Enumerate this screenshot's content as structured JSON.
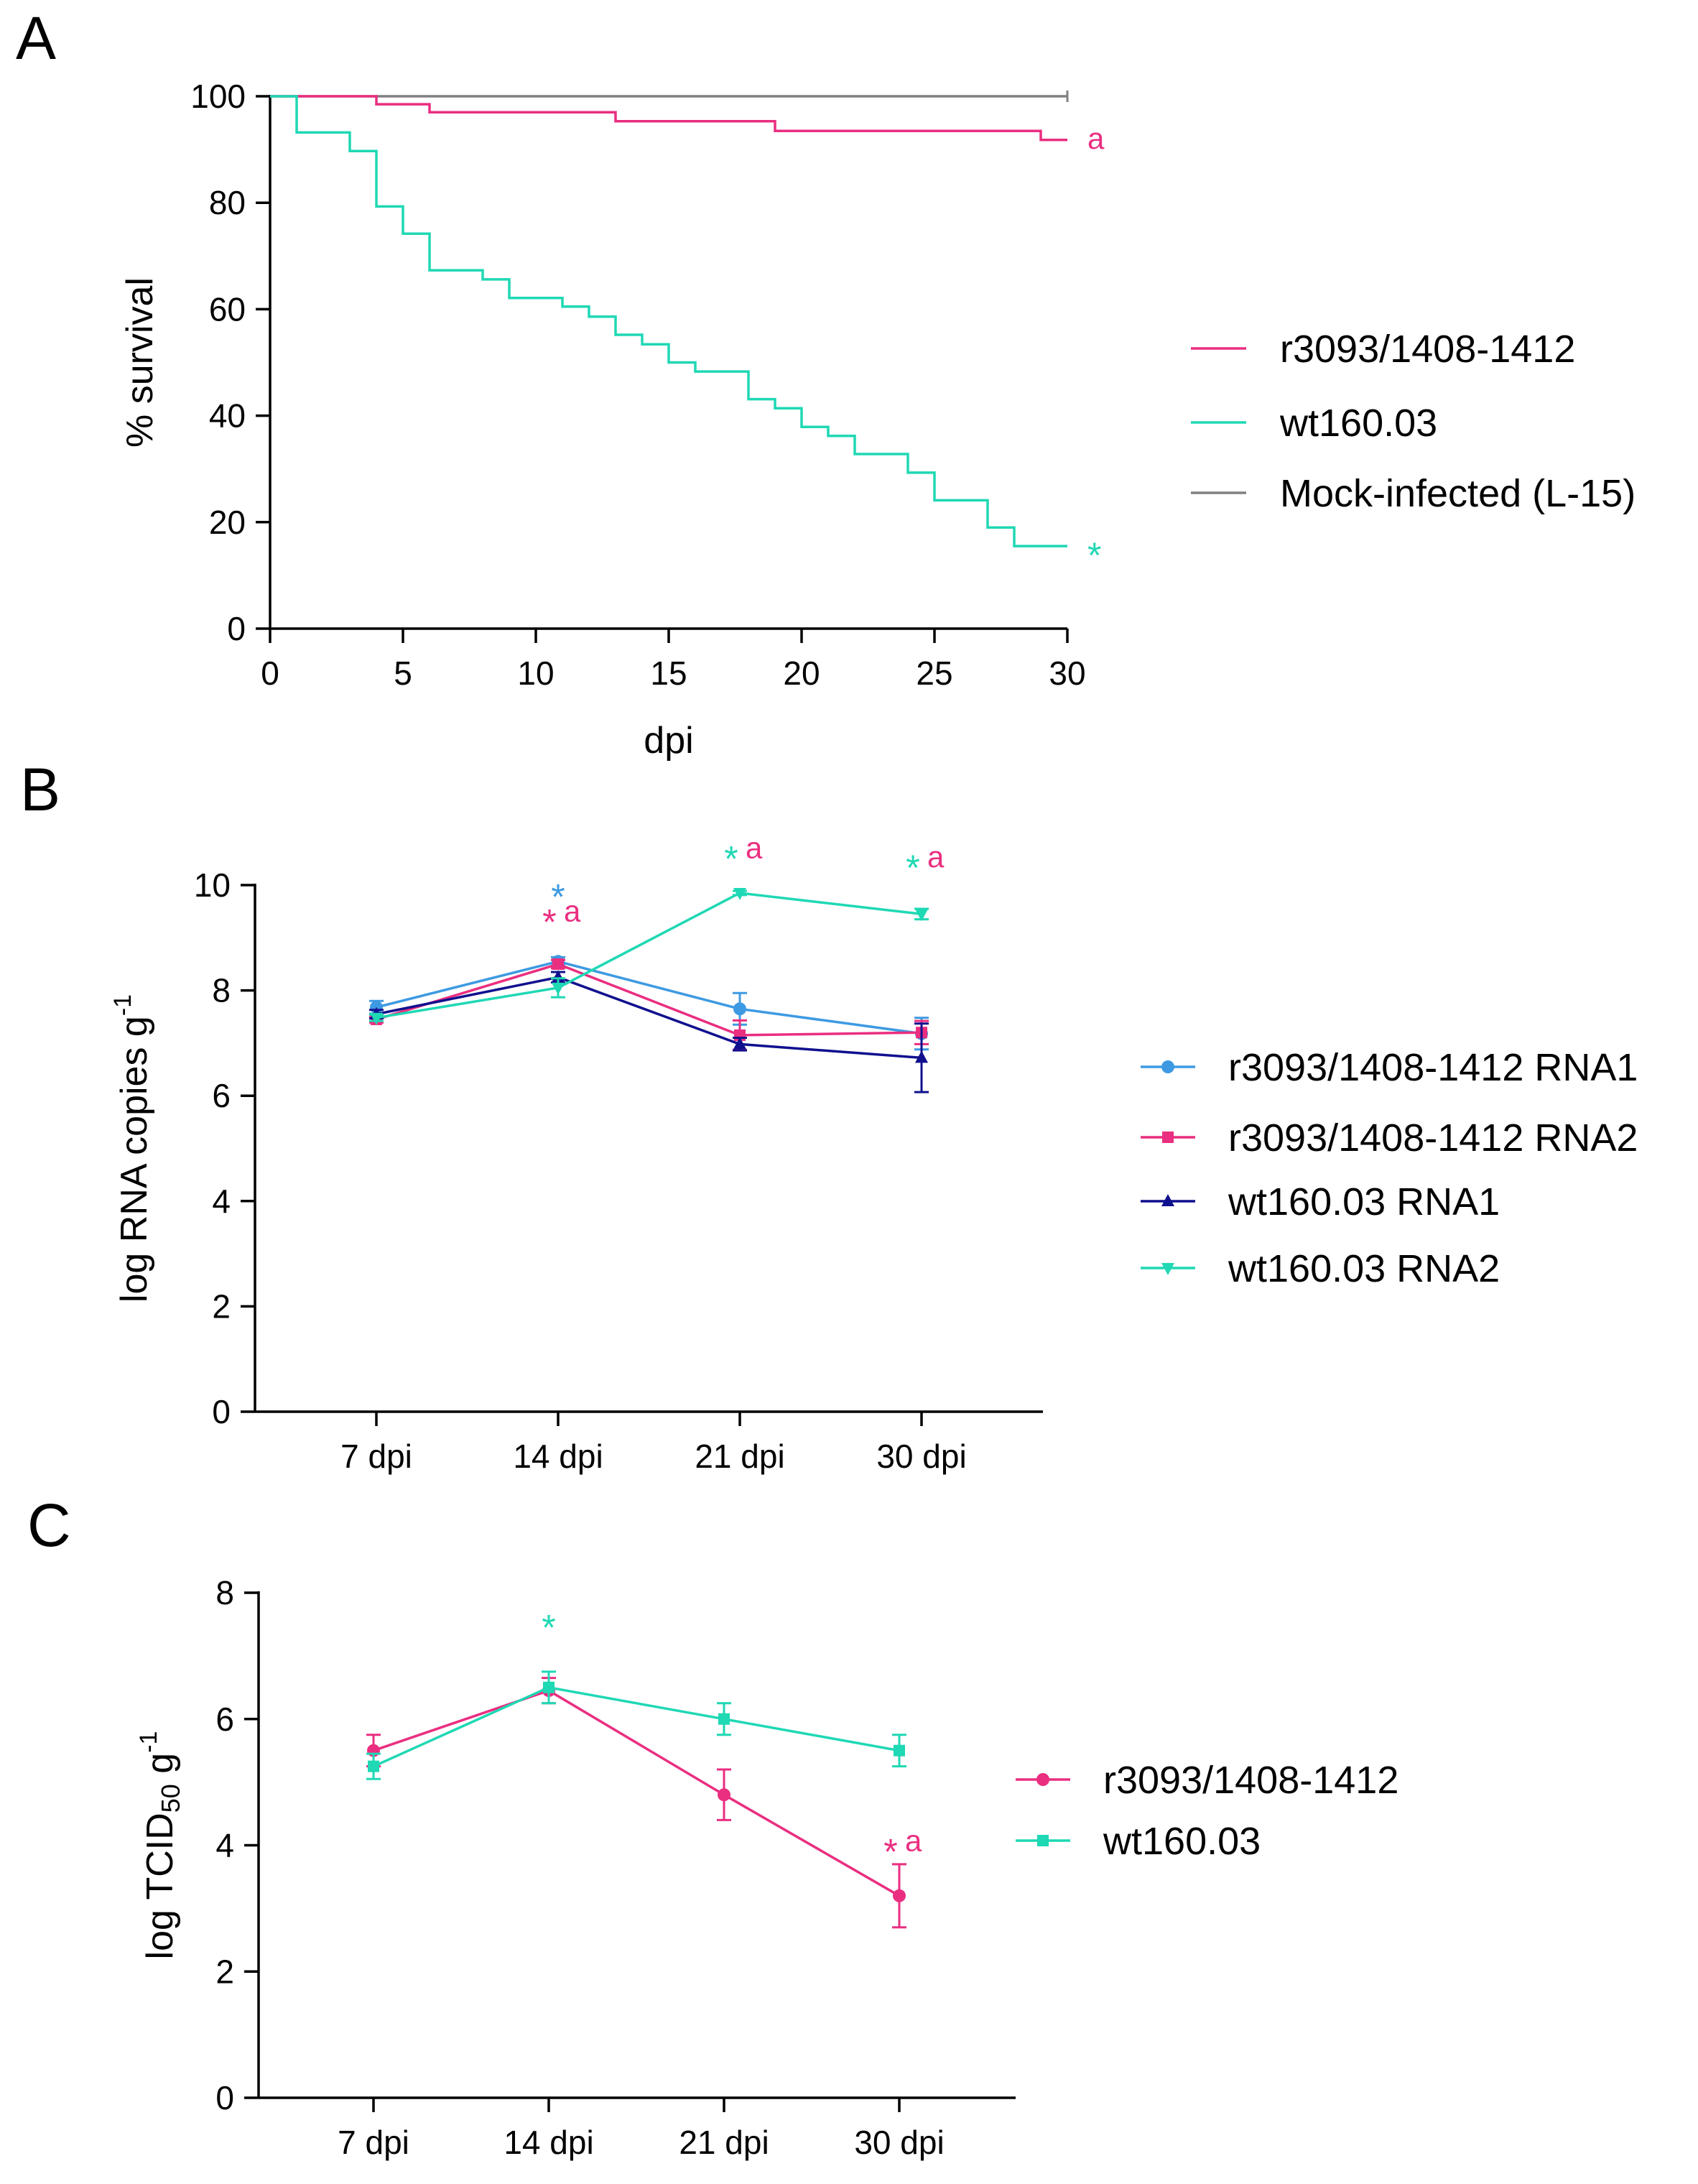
{
  "colors": {
    "pink": "#ea2e80",
    "teal": "#1fd8b4",
    "gray": "#808080",
    "lightblue": "#3d9ae2",
    "navy": "#10108f",
    "axis": "#000000"
  },
  "panels": {
    "A": {
      "letter": "A"
    },
    "B": {
      "letter": "B"
    },
    "C": {
      "letter": "C"
    }
  },
  "chart_data": [
    {
      "panel": "A",
      "type": "line",
      "style": "step",
      "title": "",
      "xlabel": "dpi",
      "ylabel": "% survival",
      "xlim": [
        0,
        30
      ],
      "ylim": [
        0,
        100
      ],
      "xticks": [
        0,
        5,
        10,
        15,
        20,
        25,
        30
      ],
      "yticks": [
        0,
        20,
        40,
        60,
        80,
        100
      ],
      "legend_position": "right",
      "series": [
        {
          "name": "r3093/1408-1412",
          "color": "#ea2e80",
          "points": [
            [
              0,
              100
            ],
            [
              4,
              100
            ],
            [
              4,
              98.5
            ],
            [
              6,
              98.5
            ],
            [
              6,
              97
            ],
            [
              13,
              97
            ],
            [
              13,
              95.3
            ],
            [
              19,
              95.3
            ],
            [
              19,
              93.5
            ],
            [
              29,
              93.5
            ],
            [
              29,
              91.8
            ],
            [
              30,
              91.8
            ]
          ],
          "end_label": "a"
        },
        {
          "name": "wt160.03",
          "color": "#1fd8b4",
          "points": [
            [
              0,
              100
            ],
            [
              1,
              100
            ],
            [
              1,
              93.2
            ],
            [
              3,
              93.2
            ],
            [
              3,
              89.7
            ],
            [
              4,
              89.7
            ],
            [
              4,
              79.3
            ],
            [
              5,
              79.3
            ],
            [
              5,
              74.2
            ],
            [
              6,
              74.2
            ],
            [
              6,
              67.3
            ],
            [
              8,
              67.3
            ],
            [
              8,
              65.6
            ],
            [
              9,
              65.6
            ],
            [
              9,
              62.1
            ],
            [
              11,
              62.1
            ],
            [
              11,
              60.5
            ],
            [
              12,
              60.5
            ],
            [
              12,
              58.6
            ],
            [
              13,
              58.6
            ],
            [
              13,
              55.2
            ],
            [
              14,
              55.2
            ],
            [
              14,
              53.4
            ],
            [
              15,
              53.4
            ],
            [
              15,
              50
            ],
            [
              16,
              50
            ],
            [
              16,
              48.3
            ],
            [
              18,
              48.3
            ],
            [
              18,
              43.1
            ],
            [
              19,
              43.1
            ],
            [
              19,
              41.4
            ],
            [
              20,
              41.4
            ],
            [
              20,
              37.9
            ],
            [
              21,
              37.9
            ],
            [
              21,
              36.2
            ],
            [
              22,
              36.2
            ],
            [
              22,
              32.8
            ],
            [
              24,
              32.8
            ],
            [
              24,
              29.3
            ],
            [
              25,
              29.3
            ],
            [
              25,
              24.1
            ],
            [
              27,
              24.1
            ],
            [
              27,
              19
            ],
            [
              28,
              19
            ],
            [
              28,
              15.5
            ],
            [
              30,
              15.5
            ]
          ],
          "end_label": "*"
        },
        {
          "name": "Mock-infected (L-15)",
          "color": "#808080",
          "points": [
            [
              0,
              100
            ],
            [
              30,
              100
            ]
          ],
          "end_label": ""
        }
      ]
    },
    {
      "panel": "B",
      "type": "line",
      "title": "",
      "xlabel": "",
      "ylabel_main": "log RNA copies g",
      "ylabel_sup": "-1",
      "categories": [
        "7 dpi",
        "14 dpi",
        "21 dpi",
        "30 dpi"
      ],
      "ylim": [
        0,
        10
      ],
      "yticks": [
        0,
        2,
        4,
        6,
        8,
        10
      ],
      "legend_position": "right",
      "series": [
        {
          "name": "r3093/1408-1412 RNA1",
          "color": "#3d9ae2",
          "marker": "circle",
          "values": [
            7.68,
            8.55,
            7.65,
            7.18
          ],
          "errors": [
            0.12,
            0.08,
            0.3,
            0.3
          ]
        },
        {
          "name": "r3093/1408-1412 RNA2",
          "color": "#ea2e80",
          "marker": "square",
          "values": [
            7.45,
            8.5,
            7.15,
            7.2
          ],
          "errors": [
            0.06,
            0.08,
            0.28,
            0.22
          ]
        },
        {
          "name": "wt160.03 RNA1",
          "color": "#10108f",
          "marker": "triangle-up",
          "values": [
            7.55,
            8.25,
            6.98,
            6.72
          ],
          "errors": [
            0.08,
            0.1,
            0.12,
            0.65
          ]
        },
        {
          "name": "wt160.03 RNA2",
          "color": "#1fd8b4",
          "marker": "triangle-down",
          "values": [
            7.48,
            8.05,
            9.85,
            9.45
          ],
          "errors": [
            0.06,
            0.18,
            0.04,
            0.1
          ]
        }
      ],
      "annotations": [
        {
          "category": "14 dpi",
          "y": 9.9,
          "star": "*",
          "star_color": "#3d9ae2",
          "letter": "",
          "letter_color": ""
        },
        {
          "category": "14 dpi",
          "y": 9.42,
          "star": "*",
          "star_color": "#ea2e80",
          "letter": "a",
          "letter_color": "#ea2e80"
        },
        {
          "category": "21 dpi",
          "y": 10.62,
          "star": "*",
          "star_color": "#1fd8b4",
          "letter": "a",
          "letter_color": "#ea2e80"
        },
        {
          "category": "30 dpi",
          "y": 10.45,
          "star": "*",
          "star_color": "#1fd8b4",
          "letter": "a",
          "letter_color": "#ea2e80"
        }
      ]
    },
    {
      "panel": "C",
      "type": "line",
      "title": "",
      "xlabel": "",
      "ylabel_main": "log TCID",
      "ylabel_sub": "50",
      "ylabel_unit": " g",
      "ylabel_sup": "-1",
      "categories": [
        "7 dpi",
        "14 dpi",
        "21 dpi",
        "30 dpi"
      ],
      "ylim": [
        0,
        8
      ],
      "yticks": [
        0,
        2,
        4,
        6,
        8
      ],
      "legend_position": "right",
      "series": [
        {
          "name": "r3093/1408-1412",
          "color": "#ea2e80",
          "marker": "circle",
          "values": [
            5.5,
            6.45,
            4.8,
            3.2
          ],
          "errors": [
            0.25,
            0.2,
            0.4,
            0.5
          ]
        },
        {
          "name": "wt160.03",
          "color": "#1fd8b4",
          "marker": "square",
          "values": [
            5.25,
            6.5,
            6.0,
            5.5
          ],
          "errors": [
            0.2,
            0.25,
            0.25,
            0.25
          ]
        }
      ],
      "annotations": [
        {
          "category": "14 dpi",
          "y": 7.55,
          "star": "*",
          "star_color": "#1fd8b4",
          "letter": "",
          "letter_color": ""
        },
        {
          "category": "30 dpi",
          "y": 4.0,
          "star": "*",
          "star_color": "#ea2e80",
          "letter": "a",
          "letter_color": "#ea2e80"
        }
      ]
    }
  ]
}
